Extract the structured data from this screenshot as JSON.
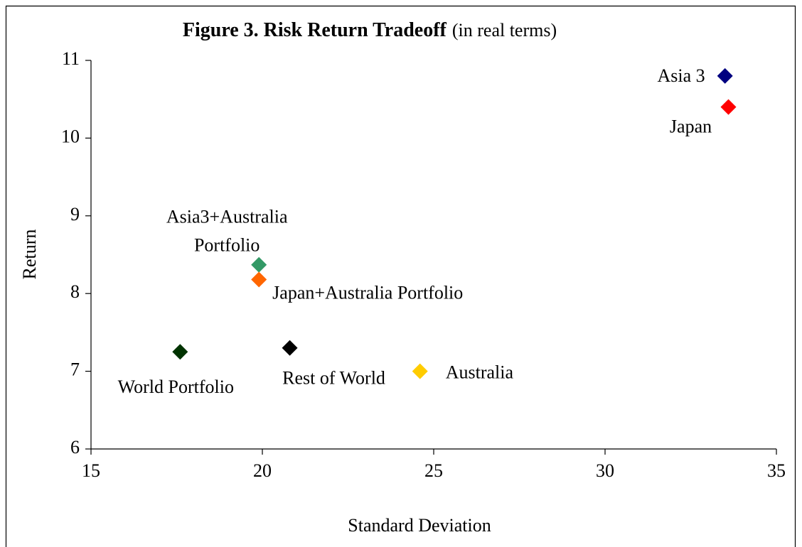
{
  "chart_data": {
    "type": "scatter",
    "title": "Figure 3. Risk Return Tradeoff",
    "subtitle": "(in real terms)",
    "x_label": "Standard Deviation",
    "y_label": "Return",
    "xlim": [
      15,
      35
    ],
    "xticks": [
      15,
      20,
      25,
      30,
      35
    ],
    "ylim": [
      6,
      11
    ],
    "yticks": [
      6,
      7,
      8,
      9,
      10,
      11
    ],
    "grid": false,
    "series": [
      {
        "name": "Asia 3",
        "color": "#000080",
        "x": [
          33.5
        ],
        "values": [
          10.8
        ]
      },
      {
        "name": "Japan",
        "color": "#ff0000",
        "x": [
          33.6
        ],
        "values": [
          10.4
        ]
      },
      {
        "name": "Asia3+Australia Portfolio",
        "color": "#339966",
        "x": [
          19.9
        ],
        "values": [
          8.37
        ]
      },
      {
        "name": "Japan+Australia Portfolio",
        "color": "#ff6600",
        "x": [
          19.9
        ],
        "values": [
          8.18
        ]
      },
      {
        "name": "World Portfolio",
        "color": "#003300",
        "x": [
          17.6
        ],
        "values": [
          7.25
        ]
      },
      {
        "name": "Rest of World",
        "color": "#000000",
        "x": [
          20.8
        ],
        "values": [
          7.3
        ]
      },
      {
        "name": "Australia",
        "color": "#ffcc00",
        "x": [
          24.6
        ],
        "values": [
          7.0
        ]
      }
    ]
  }
}
